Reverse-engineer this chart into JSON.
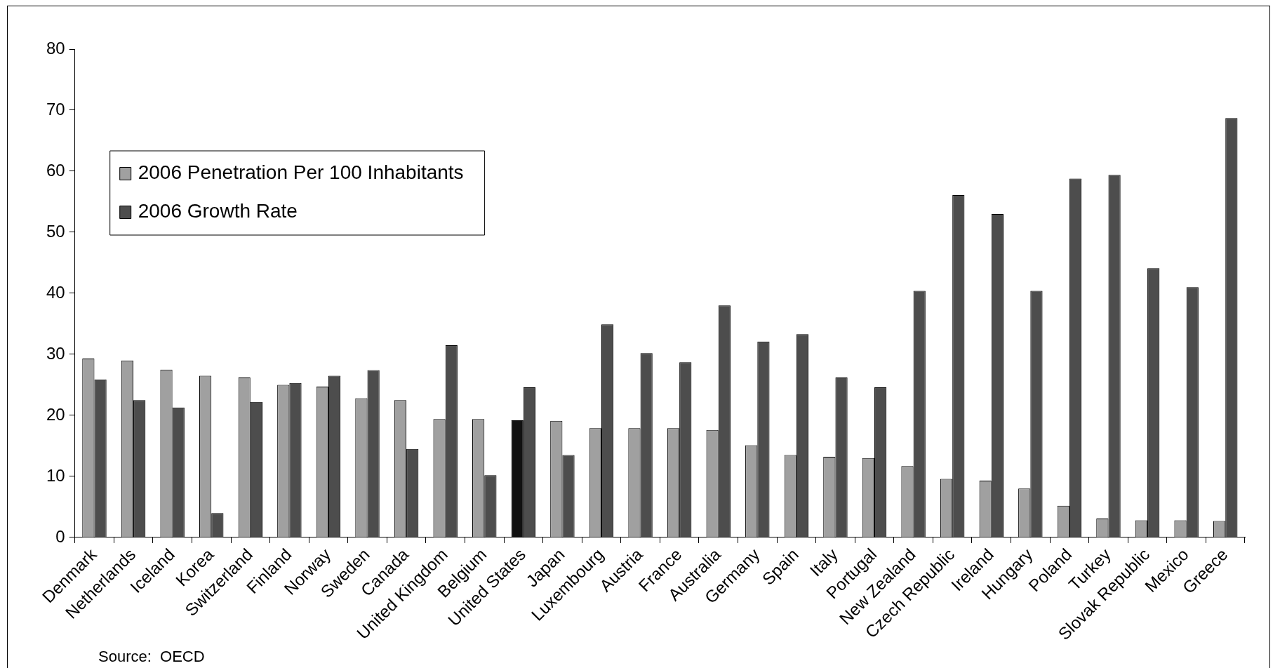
{
  "chart_data": {
    "type": "bar",
    "categories": [
      "Denmark",
      "Netherlands",
      "Iceland",
      "Korea",
      "Switzerland",
      "Finland",
      "Norway",
      "Sweden",
      "Canada",
      "United Kingdom",
      "Belgium",
      "United States",
      "Japan",
      "Luxembourg",
      "Austria",
      "France",
      "Australia",
      "Germany",
      "Spain",
      "Italy",
      "Portugal",
      "New Zealand",
      "Czech Republic",
      "Ireland",
      "Hungary",
      "Poland",
      "Turkey",
      "Slovak Republic",
      "Mexico",
      "Greece"
    ],
    "series": [
      {
        "name": "2006 Penetration Per 100 Inhabitants",
        "color": "#a0a0a0",
        "colors": [
          "#a0a0a0",
          "#a0a0a0",
          "#a0a0a0",
          "#a0a0a0",
          "#a0a0a0",
          "#a0a0a0",
          "#a0a0a0",
          "#a0a0a0",
          "#a0a0a0",
          "#a0a0a0",
          "#a0a0a0",
          "#111111",
          "#a0a0a0",
          "#a0a0a0",
          "#a0a0a0",
          "#a0a0a0",
          "#a0a0a0",
          "#a0a0a0",
          "#a0a0a0",
          "#a0a0a0",
          "#a0a0a0",
          "#a0a0a0",
          "#a0a0a0",
          "#a0a0a0",
          "#a0a0a0",
          "#a0a0a0",
          "#a0a0a0",
          "#a0a0a0",
          "#a0a0a0",
          "#a0a0a0"
        ],
        "values": [
          29.3,
          29.0,
          27.5,
          26.5,
          26.2,
          25.0,
          24.7,
          22.8,
          22.5,
          19.4,
          19.4,
          19.2,
          19.1,
          17.9,
          17.9,
          17.9,
          17.6,
          15.1,
          13.5,
          13.2,
          13.0,
          11.7,
          9.6,
          9.3,
          8.0,
          5.2,
          3.1,
          2.8,
          2.8,
          2.7
        ]
      },
      {
        "name": "2006 Growth Rate",
        "color": "#4d4d4d",
        "values": [
          25.9,
          22.5,
          21.3,
          4.0,
          22.2,
          25.3,
          26.5,
          27.4,
          14.5,
          31.5,
          10.2,
          24.6,
          13.5,
          34.9,
          30.2,
          28.7,
          38.0,
          32.1,
          33.3,
          26.2,
          24.6,
          40.4,
          56.1,
          53.0,
          40.4,
          58.8,
          59.4,
          44.1,
          41.0,
          68.7
        ]
      }
    ],
    "ylim": [
      0,
      80
    ],
    "yticks": [
      0,
      10,
      20,
      30,
      40,
      50,
      60,
      70,
      80
    ],
    "grid": false,
    "legend": "top left",
    "annotations": [
      "Source:  OECD"
    ]
  }
}
